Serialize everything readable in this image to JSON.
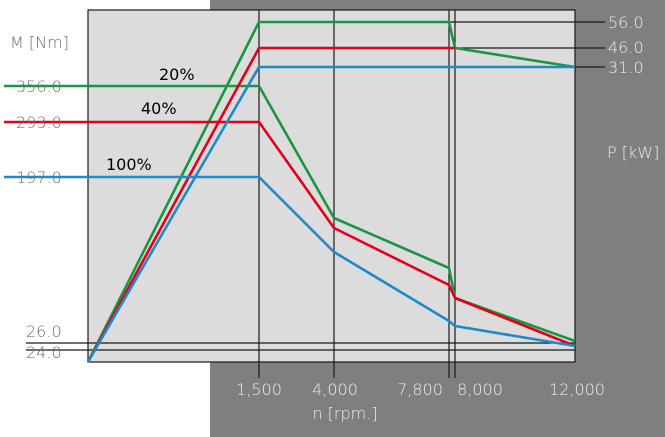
{
  "chart_data": {
    "type": "line",
    "xlabel": "n [rpm.]",
    "ylabel_left": "M [Nm]",
    "ylabel_right": "P [kW]",
    "x_ticks": [
      "1,500",
      "4,000",
      "7,800",
      "8,000",
      "12,000"
    ],
    "left_ticks": [
      "356.0",
      "293.0",
      "197.0",
      "26.0",
      "24.0"
    ],
    "right_ticks": [
      "56.0",
      "46.0",
      "31.0"
    ],
    "grid": false,
    "series": [
      {
        "name": "20%",
        "color": "#1a9641",
        "torque": [
          [
            0,
            356.0
          ],
          [
            1500,
            356.0
          ]
        ],
        "power": [
          [
            0,
            0
          ],
          [
            1500,
            56.0
          ],
          [
            7800,
            56.0
          ],
          [
            8000,
            46.0
          ],
          [
            12000,
            31.0
          ]
        ],
        "torque_drop": [
          [
            1500,
            356.0
          ],
          [
            4000,
            138
          ],
          [
            7800,
            88
          ],
          [
            8000,
            60
          ],
          [
            12000,
            26.0
          ]
        ]
      },
      {
        "name": "40%",
        "color": "#e3001b",
        "torque": [
          [
            0,
            293.0
          ],
          [
            1500,
            293.0
          ]
        ],
        "power": [
          [
            0,
            0
          ],
          [
            1500,
            46.0
          ],
          [
            8000,
            46.0
          ]
        ],
        "torque_drop": [
          [
            1500,
            293.0
          ],
          [
            4000,
            121
          ],
          [
            7800,
            66
          ],
          [
            8000,
            60
          ],
          [
            12000,
            24.0
          ]
        ]
      },
      {
        "name": "100%",
        "color": "#1f8ac8",
        "torque": [
          [
            0,
            197.0
          ],
          [
            1500,
            197.0
          ]
        ],
        "power": [
          [
            0,
            0
          ],
          [
            1500,
            31.0
          ],
          [
            12000,
            31.0
          ]
        ],
        "torque_drop": [
          [
            1500,
            197.0
          ],
          [
            4000,
            92
          ],
          [
            7800,
            42
          ],
          [
            8000,
            34
          ],
          [
            12000,
            24.0
          ]
        ]
      }
    ]
  }
}
